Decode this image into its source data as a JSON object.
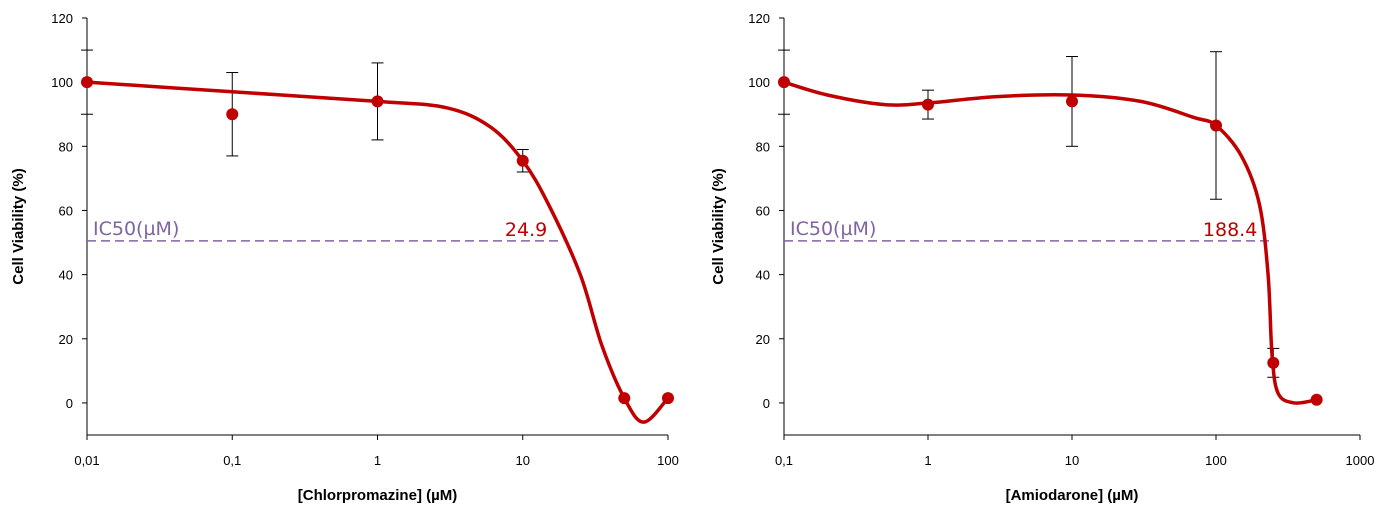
{
  "colors": {
    "curve": "#C00000",
    "ic50_line": "#8064A2",
    "ic50_value": "#C00000",
    "axis": "#000000"
  },
  "chart_data": [
    {
      "type": "scatter",
      "x_scale": "log",
      "xlabel": "[Chlorpromazine] (µM)",
      "ylabel": "Cell Viability (%)",
      "xlim": [
        0.01,
        100
      ],
      "ylim": [
        -10,
        120
      ],
      "x_ticks": [
        "0,01",
        "0,1",
        "1",
        "10",
        "100"
      ],
      "y_ticks": [
        "0",
        "20",
        "40",
        "60",
        "80",
        "100",
        "120"
      ],
      "points": [
        {
          "x": 0.01,
          "y": 100,
          "err": 10
        },
        {
          "x": 0.1,
          "y": 90,
          "err": 13
        },
        {
          "x": 1,
          "y": 94,
          "err": 12
        },
        {
          "x": 10,
          "y": 75.5,
          "err": 3.5
        },
        {
          "x": 50,
          "y": 1.5,
          "err": 0
        },
        {
          "x": 100,
          "y": 1.5,
          "err": 0
        }
      ],
      "fit_curve": [
        {
          "x": 0.01,
          "y": 100
        },
        {
          "x": 0.1,
          "y": 97
        },
        {
          "x": 1,
          "y": 94
        },
        {
          "x": 3,
          "y": 92
        },
        {
          "x": 6,
          "y": 86
        },
        {
          "x": 10,
          "y": 75.5
        },
        {
          "x": 15,
          "y": 62
        },
        {
          "x": 24.9,
          "y": 40
        },
        {
          "x": 35,
          "y": 18
        },
        {
          "x": 50,
          "y": 1.5
        },
        {
          "x": 68,
          "y": -6
        },
        {
          "x": 100,
          "y": 1.5
        }
      ],
      "ic50": {
        "label": "IC50(µM)",
        "value_text": "24.9",
        "level": 50.5,
        "x_end": 19
      }
    },
    {
      "type": "scatter",
      "x_scale": "log",
      "xlabel": "[Amiodarone] (µM)",
      "ylabel": "Cell Viability (%)",
      "xlim": [
        0.1,
        1000
      ],
      "ylim": [
        -10,
        120
      ],
      "x_ticks": [
        "0,1",
        "1",
        "10",
        "100",
        "1000"
      ],
      "y_ticks": [
        "0",
        "20",
        "40",
        "60",
        "80",
        "100",
        "120"
      ],
      "points": [
        {
          "x": 0.1,
          "y": 100,
          "err": 10
        },
        {
          "x": 1,
          "y": 93,
          "err": 4.5
        },
        {
          "x": 10,
          "y": 94,
          "err": 14
        },
        {
          "x": 100,
          "y": 86.5,
          "err": 23
        },
        {
          "x": 250,
          "y": 12.5,
          "err": 4.5
        },
        {
          "x": 500,
          "y": 1,
          "err": 0
        }
      ],
      "fit_curve": [
        {
          "x": 0.1,
          "y": 100
        },
        {
          "x": 0.2,
          "y": 96
        },
        {
          "x": 0.5,
          "y": 93
        },
        {
          "x": 1,
          "y": 93.5
        },
        {
          "x": 3,
          "y": 95.5
        },
        {
          "x": 10,
          "y": 96
        },
        {
          "x": 30,
          "y": 94
        },
        {
          "x": 70,
          "y": 89
        },
        {
          "x": 100,
          "y": 86.5
        },
        {
          "x": 150,
          "y": 77
        },
        {
          "x": 200,
          "y": 62
        },
        {
          "x": 230,
          "y": 40
        },
        {
          "x": 245,
          "y": 15
        },
        {
          "x": 270,
          "y": 3
        },
        {
          "x": 350,
          "y": 0
        },
        {
          "x": 500,
          "y": 1
        }
      ],
      "ic50": {
        "label": "IC50(µM)",
        "value_text": "188.4",
        "level": 50.5,
        "x_end": 250
      }
    }
  ]
}
